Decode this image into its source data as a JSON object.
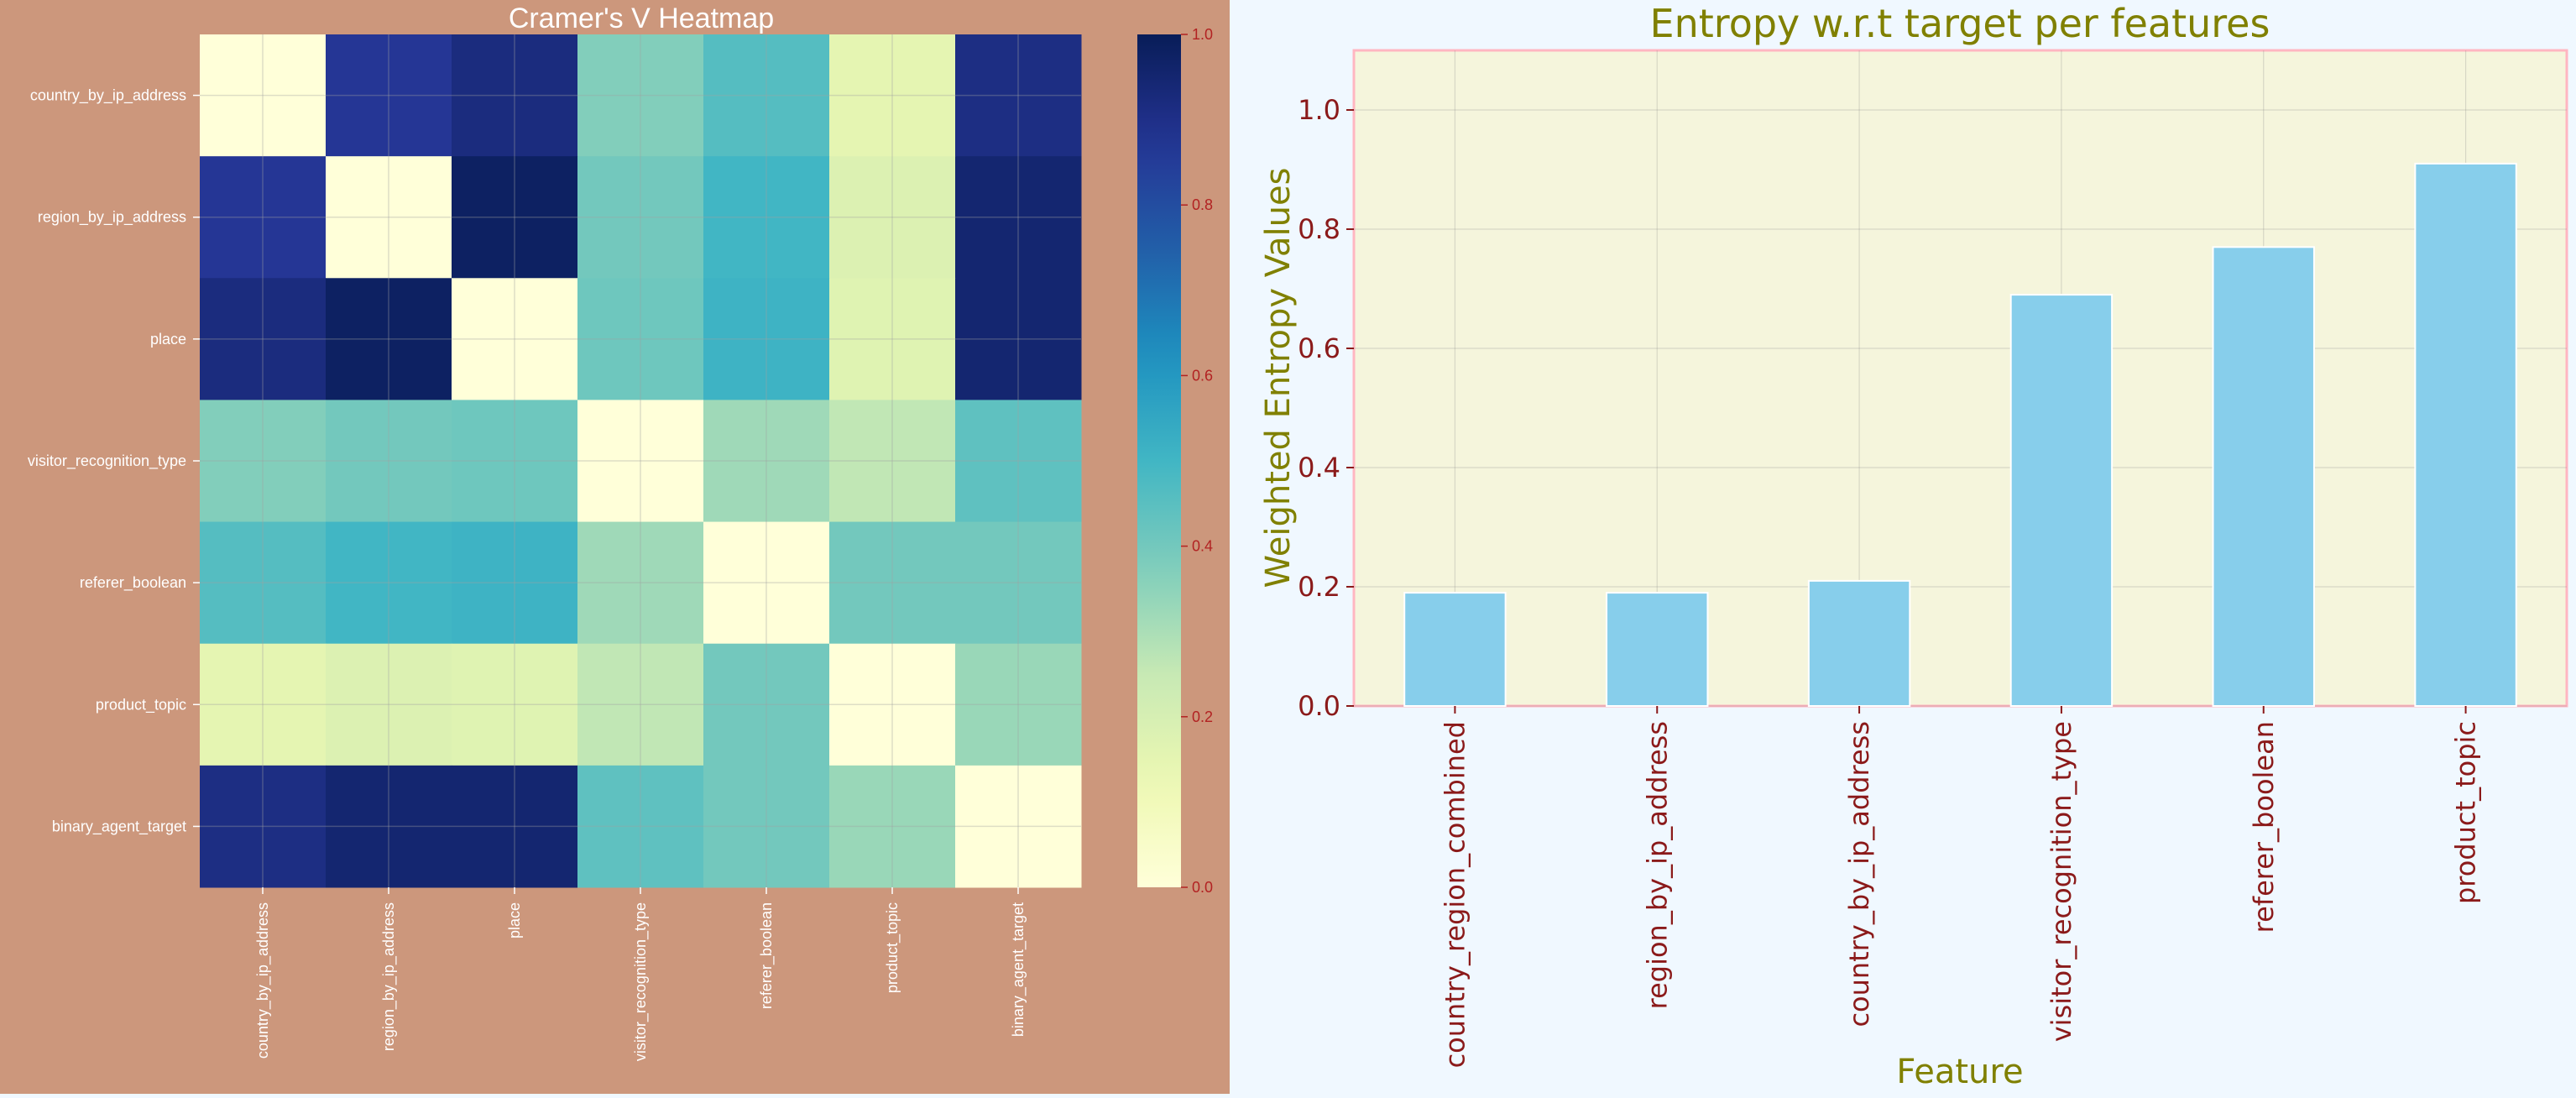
{
  "chart_data": [
    {
      "type": "heatmap",
      "title": "Cramer's V Heatmap",
      "row_labels": [
        "country_by_ip_address",
        "region_by_ip_address",
        "place",
        "visitor_recognition_type",
        "referer_boolean",
        "product_topic",
        "binary_agent_target"
      ],
      "col_labels": [
        "country_by_ip_address",
        "region_by_ip_address",
        "place",
        "visitor_recognition_type",
        "referer_boolean",
        "product_topic",
        "binary_agent_target"
      ],
      "values": [
        [
          0.0,
          0.87,
          0.92,
          0.37,
          0.46,
          0.15,
          0.91
        ],
        [
          0.87,
          0.0,
          0.98,
          0.4,
          0.5,
          0.18,
          0.95
        ],
        [
          0.92,
          0.98,
          0.0,
          0.41,
          0.51,
          0.17,
          0.95
        ],
        [
          0.37,
          0.4,
          0.41,
          0.0,
          0.32,
          0.26,
          0.44
        ],
        [
          0.46,
          0.5,
          0.51,
          0.32,
          0.0,
          0.4,
          0.4
        ],
        [
          0.15,
          0.18,
          0.17,
          0.26,
          0.4,
          0.0,
          0.33
        ],
        [
          0.91,
          0.95,
          0.95,
          0.44,
          0.4,
          0.33,
          0.0
        ]
      ],
      "colorbar": {
        "colormap": "YlGnBu",
        "range": [
          0.0,
          1.0
        ],
        "ticks": [
          0.0,
          0.2,
          0.4,
          0.6,
          0.8,
          1.0
        ],
        "tick_labels": [
          "0.0",
          "0.2",
          "0.4",
          "0.6",
          "0.8",
          "1.0"
        ]
      }
    },
    {
      "type": "bar",
      "title": "Entropy w.r.t target per features",
      "xlabel": "Feature",
      "ylabel": "Weighted Entropy Values",
      "categories": [
        "country_region_combined",
        "region_by_ip_address",
        "country_by_ip_address",
        "visitor_recognition_type",
        "referer_boolean",
        "product_topic"
      ],
      "values": [
        0.19,
        0.19,
        0.21,
        0.69,
        0.77,
        0.91
      ],
      "ylim": [
        0.0,
        1.1
      ],
      "yticks": [
        0.0,
        0.2,
        0.4,
        0.6,
        0.8,
        1.0
      ],
      "ytick_labels": [
        "0.0",
        "0.2",
        "0.4",
        "0.6",
        "0.8",
        "1.0"
      ],
      "grid": true
    }
  ],
  "colors": {
    "left_background": "#cc977c",
    "right_background": "#f0f8ff",
    "plot_background": "#f5f5dc",
    "plot_border": "#ffb6c1",
    "bar_fill": "#87ceeb",
    "title_color_right": "#808000",
    "tick_color_right": "#8b1a1a",
    "heatmap_tick_label": "#ffffff",
    "colorbar_tick": "#b22222"
  }
}
